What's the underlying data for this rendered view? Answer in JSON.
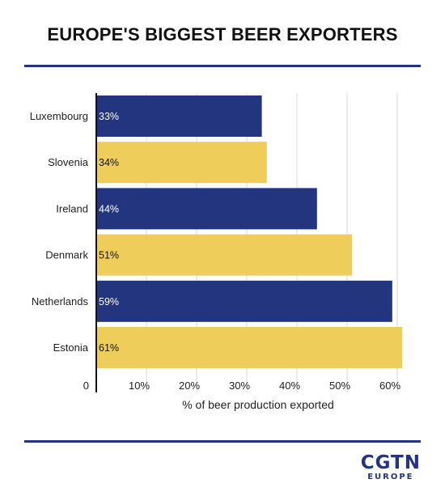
{
  "title": "EUROPE'S BIGGEST BEER EXPORTERS",
  "logo": {
    "main": "CGTN",
    "sub": "EUROPE"
  },
  "colors": {
    "navy": "#24357f",
    "yellow": "#eecd5a",
    "grid": "#d9d9d9",
    "axis": "#111111"
  },
  "chart_data": {
    "type": "bar",
    "orientation": "horizontal",
    "title": "EUROPE'S BIGGEST BEER EXPORTERS",
    "categories": [
      "Luxembourg",
      "Slovenia",
      "Ireland",
      "Denmark",
      "Netherlands",
      "Estonia"
    ],
    "values": [
      33,
      34,
      44,
      51,
      59,
      61
    ],
    "value_labels": [
      "33%",
      "34%",
      "44%",
      "51%",
      "59%",
      "61%"
    ],
    "bar_colors": [
      "#24357f",
      "#eecd5a",
      "#24357f",
      "#eecd5a",
      "#24357f",
      "#eecd5a"
    ],
    "label_colors": [
      "#ffffff",
      "#111111",
      "#ffffff",
      "#111111",
      "#ffffff",
      "#111111"
    ],
    "xlabel": "% of beer production exported",
    "ylabel": "",
    "xlim": [
      0,
      60
    ],
    "xticks": [
      0,
      10,
      20,
      30,
      40,
      50,
      60
    ],
    "xtick_labels": [
      "0",
      "10%",
      "20%",
      "30%",
      "40%",
      "50%",
      "60%"
    ],
    "grid": true,
    "legend": "none"
  }
}
